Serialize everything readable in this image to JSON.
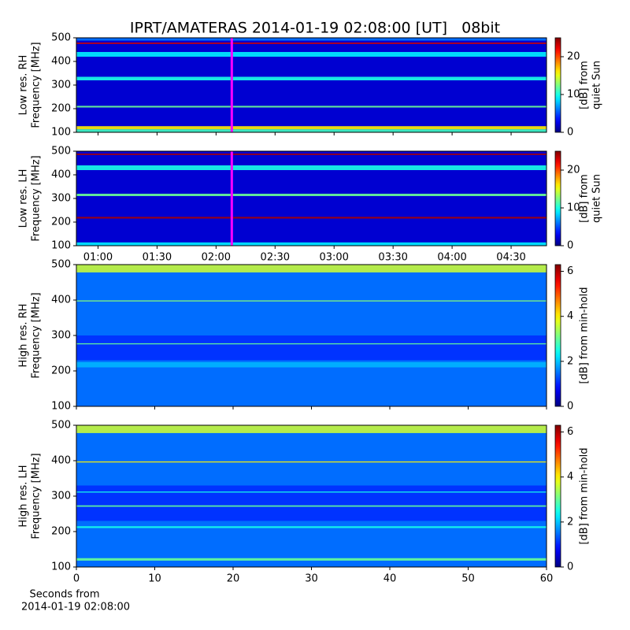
{
  "title": "IPRT/AMATERAS 2014-01-19 02:08:00 [UT]   08bit",
  "chart_data": [
    {
      "type": "heatmap",
      "ylabel": [
        "Low res. RH",
        "Frequency [MHz]"
      ],
      "xlim": [
        49,
        288
      ],
      "ylim": [
        100,
        500
      ],
      "yticks": [
        100,
        200,
        300,
        400,
        500
      ],
      "background": 2,
      "bands": [
        {
          "f0": 100,
          "f1": 113,
          "value": 11
        },
        {
          "f0": 113,
          "f1": 126,
          "value": 16
        },
        {
          "f0": 205,
          "f1": 212,
          "value": 12
        },
        {
          "f0": 320,
          "f1": 335,
          "value": 10
        },
        {
          "f0": 420,
          "f1": 440,
          "value": 9
        },
        {
          "f0": 474,
          "f1": 480,
          "value": 23
        },
        {
          "f0": 488,
          "f1": 500,
          "value": 6
        }
      ],
      "marker": {
        "x": 128,
        "color": "#ff00ff"
      },
      "clim": [
        0,
        25
      ],
      "cticks": [
        0,
        10,
        20
      ],
      "clabel": [
        "[dB] from",
        "quiet Sun"
      ]
    },
    {
      "type": "heatmap",
      "ylabel": [
        "Low res. LH",
        "Frequency [MHz]"
      ],
      "xlim": [
        49,
        288
      ],
      "ylim": [
        100,
        500
      ],
      "yticks": [
        100,
        200,
        300,
        400,
        500
      ],
      "xticks": [
        {
          "value": 60,
          "label": "01:00"
        },
        {
          "value": 90,
          "label": "01:30"
        },
        {
          "value": 120,
          "label": "02:00"
        },
        {
          "value": 150,
          "label": "02:30"
        },
        {
          "value": 180,
          "label": "03:00"
        },
        {
          "value": 210,
          "label": "03:30"
        },
        {
          "value": 240,
          "label": "04:00"
        },
        {
          "value": 270,
          "label": "04:30"
        }
      ],
      "background": 2,
      "bands": [
        {
          "f0": 100,
          "f1": 114,
          "value": 9
        },
        {
          "f0": 215,
          "f1": 222,
          "value": 24
        },
        {
          "f0": 310,
          "f1": 320,
          "value": 12
        },
        {
          "f0": 420,
          "f1": 440,
          "value": 10
        },
        {
          "f0": 484,
          "f1": 490,
          "value": 24
        }
      ],
      "marker": {
        "x": 128,
        "color": "#ff00ff"
      },
      "clim": [
        0,
        25
      ],
      "cticks": [
        0,
        10,
        20
      ],
      "clabel": [
        "[dB] from",
        "quiet Sun"
      ]
    },
    {
      "type": "heatmap",
      "ylabel": [
        "High res. RH",
        "Frequency [MHz]"
      ],
      "xlim": [
        0,
        60
      ],
      "ylim": [
        100,
        500
      ],
      "yticks": [
        100,
        200,
        300,
        400,
        500
      ],
      "background": 1.1,
      "bands": [
        {
          "f0": 100,
          "f1": 230,
          "value": 1.5
        },
        {
          "f0": 210,
          "f1": 225,
          "value": 1.9
        },
        {
          "f0": 275,
          "f1": 278,
          "value": 3
        },
        {
          "f0": 300,
          "f1": 480,
          "value": 1.5
        },
        {
          "f0": 396,
          "f1": 399,
          "value": 3.2
        },
        {
          "f0": 478,
          "f1": 500,
          "value": 3.6
        }
      ],
      "clim": [
        0,
        6.3
      ],
      "cticks": [
        0,
        2,
        4,
        6
      ],
      "clabel": [
        "[dB] from min-hold"
      ]
    },
    {
      "type": "heatmap",
      "ylabel": [
        "High res. LH",
        "Frequency [MHz]"
      ],
      "xlim": [
        0,
        60
      ],
      "ylim": [
        100,
        500
      ],
      "yticks": [
        100,
        200,
        300,
        400,
        500
      ],
      "xticks": [
        0,
        10,
        20,
        30,
        40,
        50,
        60
      ],
      "xlabel": [
        "Seconds from",
        "2014-01-19 02:08:00"
      ],
      "background": 1.1,
      "bands": [
        {
          "f0": 100,
          "f1": 230,
          "value": 1.5
        },
        {
          "f0": 118,
          "f1": 125,
          "value": 3
        },
        {
          "f0": 210,
          "f1": 215,
          "value": 2.5
        },
        {
          "f0": 270,
          "f1": 274,
          "value": 3
        },
        {
          "f0": 310,
          "f1": 313,
          "value": 2.5
        },
        {
          "f0": 330,
          "f1": 480,
          "value": 1.5
        },
        {
          "f0": 395,
          "f1": 398,
          "value": 4
        },
        {
          "f0": 478,
          "f1": 500,
          "value": 3.6
        }
      ],
      "clim": [
        0,
        6.3
      ],
      "cticks": [
        0,
        2,
        4,
        6
      ],
      "clabel": [
        "[dB] from min-hold"
      ]
    }
  ]
}
